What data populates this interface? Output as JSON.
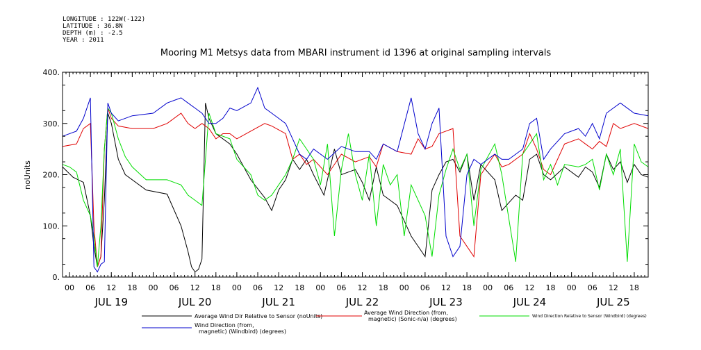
{
  "header": {
    "longitude": "LONGITUDE : 122W(-122)",
    "latitude": "LATITUDE : 36.8N",
    "depth": "DEPTH (m) : -2.5",
    "year": "YEAR : 2011"
  },
  "colors": {
    "series": [
      "#000000",
      "#e00000",
      "#00dd00",
      "#0000cc"
    ]
  },
  "chart_data": {
    "type": "line",
    "title": "Mooring M1 Metsys data from MBARI instrument id 1396 at original sampling intervals",
    "ylabel": "noUnits",
    "xlabel": "",
    "ylim": [
      0,
      400
    ],
    "y_ticks": [
      0,
      100,
      200,
      300,
      400
    ],
    "y_tick_labels": [
      "0.",
      "100.",
      "200.",
      "300.",
      "400."
    ],
    "xlim_hours": [
      0,
      168
    ],
    "x_hour_labels": [
      "00",
      "06",
      "12",
      "18",
      "00",
      "06",
      "12",
      "18",
      "00",
      "06",
      "12",
      "18",
      "00",
      "06",
      "12",
      "18",
      "00",
      "06",
      "12",
      "18",
      "00",
      "06",
      "12",
      "18",
      "00",
      "06",
      "12",
      "18"
    ],
    "day_labels": [
      "JUL 19",
      "JUL 20",
      "JUL 21",
      "JUL 22",
      "JUL 23",
      "JUL 24",
      "JUL 25"
    ],
    "grid": false,
    "legend_position": "bottom",
    "series": [
      {
        "name": "Average Wind Dir Relative to Sensor (noUnits)",
        "x": [
          0,
          3,
          6,
          8,
          9,
          10,
          11,
          12,
          13,
          14,
          16,
          18,
          24,
          30,
          34,
          36,
          37,
          38,
          39,
          40,
          41,
          42,
          44,
          48,
          50,
          54,
          58,
          60,
          62,
          64,
          66,
          68,
          70,
          72,
          75,
          78,
          80,
          84,
          86,
          88,
          90,
          92,
          96,
          100,
          104,
          106,
          108,
          110,
          112,
          114,
          116,
          118,
          120,
          124,
          126,
          130,
          132,
          134,
          136,
          138,
          140,
          144,
          148,
          150,
          152,
          154,
          156,
          158,
          160,
          162,
          164,
          166,
          168
        ],
        "y": [
          215,
          195,
          185,
          120,
          60,
          20,
          40,
          150,
          320,
          300,
          230,
          200,
          170,
          162,
          100,
          50,
          20,
          10,
          15,
          35,
          340,
          310,
          280,
          260,
          240,
          190,
          155,
          130,
          170,
          190,
          230,
          210,
          230,
          200,
          160,
          250,
          200,
          210,
          185,
          150,
          215,
          160,
          140,
          80,
          40,
          170,
          200,
          225,
          230,
          205,
          240,
          150,
          220,
          190,
          130,
          160,
          150,
          230,
          240,
          200,
          190,
          215,
          195,
          215,
          205,
          175,
          240,
          210,
          225,
          185,
          220,
          200,
          195
        ]
      },
      {
        "name": "Average Wind Direction (from, magnetic) (Sonic-n/a) (degrees)",
        "x": [
          0,
          4,
          6,
          8,
          9,
          10,
          11,
          12,
          13,
          14,
          16,
          20,
          26,
          30,
          34,
          36,
          38,
          40,
          42,
          44,
          46,
          48,
          50,
          54,
          58,
          60,
          64,
          66,
          68,
          70,
          72,
          76,
          80,
          84,
          88,
          90,
          92,
          96,
          100,
          102,
          104,
          106,
          108,
          112,
          114,
          116,
          118,
          120,
          124,
          126,
          128,
          132,
          134,
          136,
          138,
          140,
          144,
          148,
          150,
          152,
          154,
          156,
          158,
          160,
          164,
          168
        ],
        "y": [
          255,
          260,
          290,
          300,
          100,
          20,
          40,
          250,
          330,
          310,
          295,
          290,
          290,
          300,
          320,
          300,
          290,
          300,
          290,
          270,
          280,
          280,
          270,
          285,
          300,
          295,
          280,
          230,
          240,
          220,
          230,
          200,
          240,
          225,
          235,
          215,
          260,
          245,
          240,
          270,
          250,
          255,
          280,
          290,
          80,
          60,
          40,
          200,
          240,
          215,
          220,
          240,
          280,
          250,
          210,
          200,
          260,
          270,
          260,
          250,
          265,
          255,
          300,
          290,
          300,
          290
        ]
      },
      {
        "name": "Wind Direction Relative to Sensor (Windbird) (degrees)",
        "x": [
          0,
          2,
          4,
          6,
          8,
          9,
          10,
          11,
          12,
          13,
          14,
          16,
          18,
          20,
          24,
          30,
          34,
          36,
          38,
          40,
          42,
          44,
          48,
          50,
          54,
          56,
          58,
          60,
          64,
          66,
          68,
          70,
          72,
          74,
          76,
          78,
          80,
          82,
          84,
          86,
          88,
          90,
          92,
          94,
          96,
          98,
          100,
          104,
          106,
          108,
          110,
          112,
          114,
          116,
          118,
          120,
          124,
          126,
          130,
          132,
          134,
          136,
          138,
          140,
          142,
          144,
          148,
          150,
          152,
          154,
          156,
          158,
          160,
          162,
          164,
          166,
          168
        ],
        "y": [
          220,
          215,
          205,
          150,
          120,
          80,
          20,
          100,
          250,
          330,
          320,
          270,
          235,
          215,
          190,
          190,
          180,
          160,
          150,
          140,
          320,
          280,
          270,
          230,
          200,
          160,
          150,
          160,
          200,
          230,
          270,
          250,
          230,
          180,
          260,
          80,
          210,
          280,
          200,
          150,
          240,
          100,
          220,
          180,
          200,
          80,
          180,
          120,
          40,
          160,
          210,
          250,
          210,
          240,
          100,
          210,
          260,
          200,
          30,
          240,
          260,
          280,
          190,
          220,
          180,
          220,
          215,
          220,
          230,
          170,
          240,
          200,
          250,
          30,
          260,
          225,
          215
        ]
      },
      {
        "name": "Wind Direction (from, magnetic) (Windbird) (degrees)",
        "x": [
          0,
          4,
          6,
          8,
          9,
          10,
          11,
          12,
          13,
          14,
          16,
          20,
          26,
          30,
          34,
          36,
          38,
          40,
          42,
          44,
          46,
          48,
          50,
          54,
          56,
          58,
          60,
          62,
          64,
          66,
          68,
          70,
          72,
          76,
          80,
          84,
          88,
          90,
          92,
          96,
          100,
          102,
          104,
          106,
          108,
          110,
          112,
          114,
          116,
          118,
          120,
          124,
          126,
          128,
          132,
          134,
          136,
          138,
          140,
          144,
          148,
          150,
          152,
          154,
          156,
          158,
          160,
          164,
          168
        ],
        "y": [
          275,
          285,
          310,
          350,
          20,
          10,
          25,
          30,
          340,
          320,
          305,
          315,
          320,
          340,
          350,
          340,
          330,
          320,
          300,
          300,
          310,
          330,
          325,
          340,
          370,
          330,
          320,
          310,
          300,
          270,
          240,
          230,
          250,
          230,
          255,
          245,
          245,
          230,
          260,
          245,
          350,
          280,
          250,
          300,
          330,
          80,
          40,
          60,
          200,
          230,
          220,
          240,
          230,
          230,
          250,
          300,
          310,
          230,
          250,
          280,
          290,
          275,
          300,
          270,
          320,
          330,
          340,
          320,
          315
        ]
      }
    ]
  },
  "legend": {
    "black_label": "Average Wind Dir Relative to Sensor (noUnits)",
    "red_label_1": "Average Wind Direction (from,",
    "red_label_2": "magnetic) (Sonic-n/a) (degrees)",
    "green_label": "Wind Direction Relative to Sensor (Windbird) (degrees)",
    "blue_label_1": "Wind Direction (from,",
    "blue_label_2": "magnetic) (Windbird) (degrees)"
  }
}
